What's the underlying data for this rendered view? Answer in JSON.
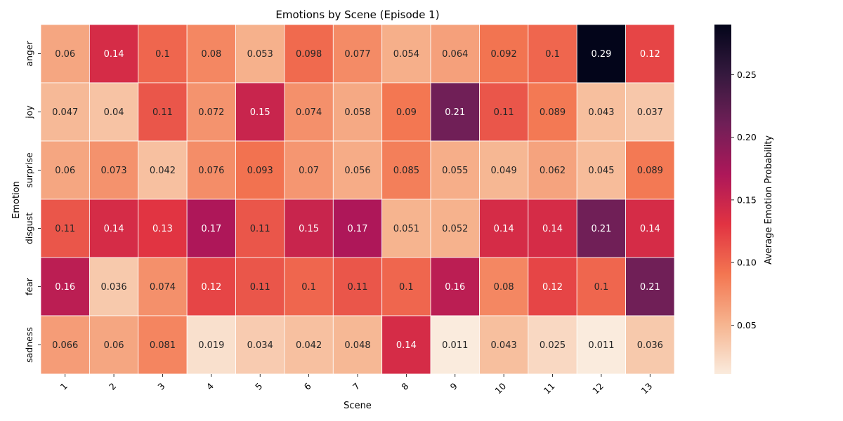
{
  "chart_data": {
    "type": "heatmap",
    "title": "Emotions by Scene (Episode 1)",
    "xlabel": "Scene",
    "ylabel": "Emotion",
    "colorbar_label": "Average Emotion Probability",
    "x_categories": [
      "1",
      "2",
      "3",
      "4",
      "5",
      "6",
      "7",
      "8",
      "9",
      "10",
      "11",
      "12",
      "13"
    ],
    "y_categories": [
      "anger",
      "joy",
      "surprise",
      "disgust",
      "fear",
      "sadness"
    ],
    "values": [
      [
        0.06,
        0.14,
        0.1,
        0.08,
        0.053,
        0.098,
        0.077,
        0.054,
        0.064,
        0.092,
        0.1,
        0.29,
        0.12
      ],
      [
        0.047,
        0.04,
        0.11,
        0.072,
        0.15,
        0.074,
        0.058,
        0.09,
        0.21,
        0.11,
        0.089,
        0.043,
        0.037
      ],
      [
        0.06,
        0.073,
        0.042,
        0.076,
        0.093,
        0.07,
        0.056,
        0.085,
        0.055,
        0.049,
        0.062,
        0.045,
        0.089
      ],
      [
        0.11,
        0.14,
        0.13,
        0.17,
        0.11,
        0.15,
        0.17,
        0.051,
        0.052,
        0.14,
        0.14,
        0.21,
        0.14
      ],
      [
        0.16,
        0.036,
        0.074,
        0.12,
        0.11,
        0.1,
        0.11,
        0.1,
        0.16,
        0.08,
        0.12,
        0.1,
        0.21
      ],
      [
        0.066,
        0.06,
        0.081,
        0.019,
        0.034,
        0.042,
        0.048,
        0.14,
        0.011,
        0.043,
        0.025,
        0.011,
        0.036
      ]
    ],
    "vmin": 0.011,
    "vmax": 0.29,
    "colorbar_ticks": [
      "0.05",
      "0.10",
      "0.15",
      "0.20",
      "0.25"
    ],
    "colormap": "rocket_r",
    "colormap_stops": [
      "#faebdd",
      "#f6b48f",
      "#f37651",
      "#e13342",
      "#ad1759",
      "#701f57",
      "#35193e",
      "#03051a"
    ]
  }
}
